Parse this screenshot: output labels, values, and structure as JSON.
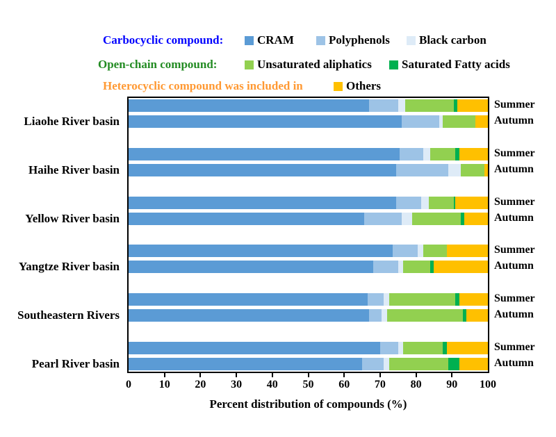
{
  "legend": {
    "rows": [
      {
        "label": "Carbocyclic compound:",
        "color": "#0000FF",
        "items": [
          {
            "name": "CRAM",
            "color": "#5B9BD5"
          },
          {
            "name": "Polyphenols",
            "color": "#9DC3E6"
          },
          {
            "name": "Black carbon",
            "color": "#DEEBF7"
          }
        ]
      },
      {
        "label": "Open-chain compound:",
        "color": "#228B22",
        "items": [
          {
            "name": "Unsaturated aliphatics",
            "color": "#92D050"
          },
          {
            "name": "Saturated Fatty acids",
            "color": "#00B050"
          }
        ]
      },
      {
        "label": "Heterocyclic compound was included in",
        "color": "#FF9933",
        "items": [
          {
            "name": "Others",
            "color": "#FFC000"
          }
        ]
      }
    ]
  },
  "chart_data": {
    "type": "bar",
    "orientation": "horizontal",
    "stacked": true,
    "xlabel": "Percent distribution of compounds (%)",
    "xlim": [
      0,
      100
    ],
    "xticks": [
      0,
      10,
      20,
      30,
      40,
      50,
      60,
      70,
      80,
      90,
      100
    ],
    "grid": false,
    "legend_position": "top",
    "series_names": [
      "CRAM",
      "Polyphenols",
      "Black carbon",
      "Unsaturated aliphatics",
      "Saturated Fatty acids",
      "Others"
    ],
    "series_colors": [
      "#5B9BD5",
      "#9DC3E6",
      "#DEEBF7",
      "#92D050",
      "#00B050",
      "#FFC000"
    ],
    "categories": [
      "Liaohe River basin",
      "Haihe River basin",
      "Yellow River basin",
      "Yangtze River basin",
      "Southeastern Rivers",
      "Pearl River basin"
    ],
    "groups": [
      {
        "basin": "Liaohe River basin",
        "bars": [
          {
            "season": "Summer",
            "values": [
              67,
              8,
              2,
              13.5,
              1,
              8.5
            ]
          },
          {
            "season": "Autumn",
            "values": [
              76,
              10.5,
              1,
              9,
              0,
              3.5
            ]
          }
        ]
      },
      {
        "basin": "Haihe River basin",
        "bars": [
          {
            "season": "Summer",
            "values": [
              75.5,
              6.5,
              2,
              7,
              1,
              8
            ]
          },
          {
            "season": "Autumn",
            "values": [
              74.5,
              14.5,
              3.5,
              6.5,
              0,
              1
            ]
          }
        ]
      },
      {
        "basin": "Yellow River basin",
        "bars": [
          {
            "season": "Summer",
            "values": [
              74.5,
              7,
              2,
              7,
              0.5,
              9
            ]
          },
          {
            "season": "Autumn",
            "values": [
              65.5,
              10.5,
              3,
              13.5,
              1,
              6.5
            ]
          }
        ]
      },
      {
        "basin": "Yangtze River basin",
        "bars": [
          {
            "season": "Summer",
            "values": [
              73.5,
              7,
              1.5,
              6.5,
              0,
              11.5
            ]
          },
          {
            "season": "Autumn",
            "values": [
              68,
              7,
              1.5,
              7.5,
              1,
              15
            ]
          }
        ]
      },
      {
        "basin": "Southeastern Rivers",
        "bars": [
          {
            "season": "Summer",
            "values": [
              66.5,
              4.5,
              1.5,
              18.5,
              1,
              8
            ]
          },
          {
            "season": "Autumn",
            "values": [
              67,
              3.5,
              1.5,
              21,
              1,
              6
            ]
          }
        ]
      },
      {
        "basin": "Pearl River basin",
        "bars": [
          {
            "season": "Summer",
            "values": [
              70,
              5,
              1.5,
              11,
              1,
              11.5
            ]
          },
          {
            "season": "Autumn",
            "values": [
              65,
              6,
              1.5,
              16.5,
              3,
              8
            ]
          }
        ]
      }
    ]
  }
}
